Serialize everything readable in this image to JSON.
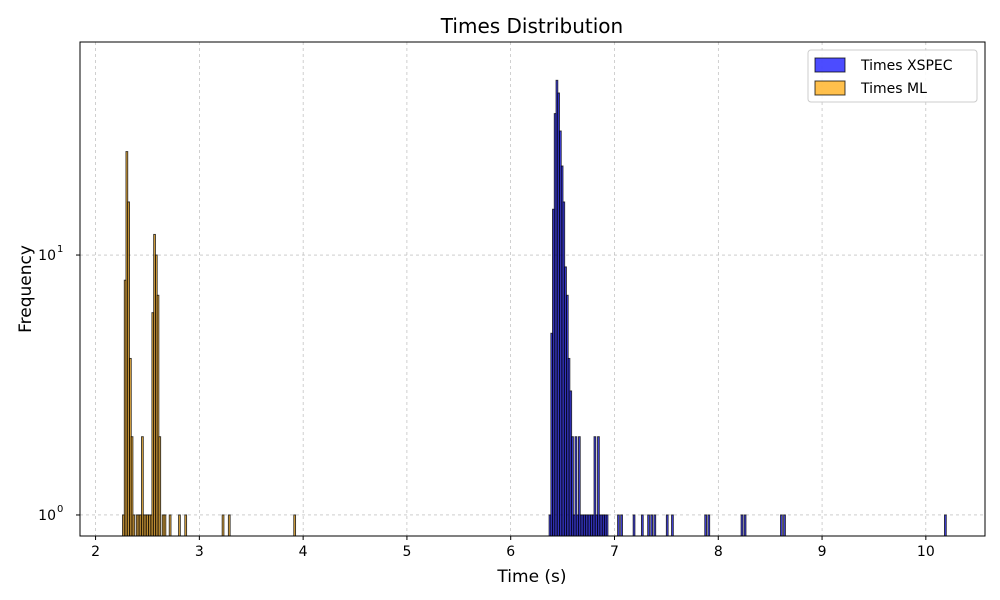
{
  "chart_data": {
    "type": "bar",
    "title": "Times Distribution",
    "xlabel": "Time (s)",
    "ylabel": "Frequency",
    "xlim": [
      1.85,
      10.57
    ],
    "ylim": [
      0.83,
      66
    ],
    "yscale": "log",
    "grid": true,
    "legend_position": "top-right",
    "x_ticks": [
      "2",
      "3",
      "4",
      "5",
      "6",
      "7",
      "8",
      "9",
      "10"
    ],
    "y_ticks": [
      {
        "value": 1,
        "label": "10",
        "exp": "0"
      },
      {
        "value": 10,
        "label": "10",
        "exp": "1"
      }
    ],
    "bin_width": 0.0167,
    "series": [
      {
        "name": "Times XSPEC",
        "color": "#0000ff",
        "fill_opacity": 0.7,
        "bins": [
          [
            6.37,
            1
          ],
          [
            6.387,
            5
          ],
          [
            6.403,
            15
          ],
          [
            6.42,
            35
          ],
          [
            6.437,
            47
          ],
          [
            6.453,
            42
          ],
          [
            6.47,
            30
          ],
          [
            6.487,
            22
          ],
          [
            6.503,
            16
          ],
          [
            6.52,
            9
          ],
          [
            6.537,
            7
          ],
          [
            6.553,
            4
          ],
          [
            6.57,
            3
          ],
          [
            6.587,
            2
          ],
          [
            6.603,
            1
          ],
          [
            6.62,
            2
          ],
          [
            6.637,
            1
          ],
          [
            6.653,
            2
          ],
          [
            6.67,
            1
          ],
          [
            6.687,
            1
          ],
          [
            6.703,
            1
          ],
          [
            6.72,
            1
          ],
          [
            6.737,
            1
          ],
          [
            6.753,
            1
          ],
          [
            6.77,
            1
          ],
          [
            6.787,
            1
          ],
          [
            6.803,
            2
          ],
          [
            6.82,
            1
          ],
          [
            6.837,
            2
          ],
          [
            6.853,
            1
          ],
          [
            6.87,
            1
          ],
          [
            6.887,
            1
          ],
          [
            6.903,
            1
          ],
          [
            6.92,
            1
          ],
          [
            7.03,
            1
          ],
          [
            7.06,
            1
          ],
          [
            7.18,
            1
          ],
          [
            7.26,
            1
          ],
          [
            7.32,
            1
          ],
          [
            7.35,
            1
          ],
          [
            7.38,
            1
          ],
          [
            7.5,
            1
          ],
          [
            7.55,
            1
          ],
          [
            7.87,
            1
          ],
          [
            7.9,
            1
          ],
          [
            8.22,
            1
          ],
          [
            8.25,
            1
          ],
          [
            8.6,
            1
          ],
          [
            8.63,
            1
          ],
          [
            10.18,
            1
          ]
        ]
      },
      {
        "name": "Times ML",
        "color": "#ffa500",
        "fill_opacity": 0.7,
        "bins": [
          [
            2.26,
            1
          ],
          [
            2.277,
            8
          ],
          [
            2.293,
            25
          ],
          [
            2.31,
            16
          ],
          [
            2.327,
            4
          ],
          [
            2.343,
            2
          ],
          [
            2.36,
            1
          ],
          [
            2.393,
            1
          ],
          [
            2.41,
            1
          ],
          [
            2.427,
            1
          ],
          [
            2.443,
            2
          ],
          [
            2.46,
            1
          ],
          [
            2.477,
            1
          ],
          [
            2.493,
            1
          ],
          [
            2.51,
            1
          ],
          [
            2.527,
            1
          ],
          [
            2.543,
            6
          ],
          [
            2.56,
            12
          ],
          [
            2.577,
            10
          ],
          [
            2.593,
            7
          ],
          [
            2.61,
            2
          ],
          [
            2.643,
            1
          ],
          [
            2.66,
            1
          ],
          [
            2.71,
            1
          ],
          [
            2.8,
            1
          ],
          [
            2.86,
            1
          ],
          [
            3.22,
            1
          ],
          [
            3.28,
            1
          ],
          [
            3.91,
            1
          ]
        ]
      }
    ]
  }
}
